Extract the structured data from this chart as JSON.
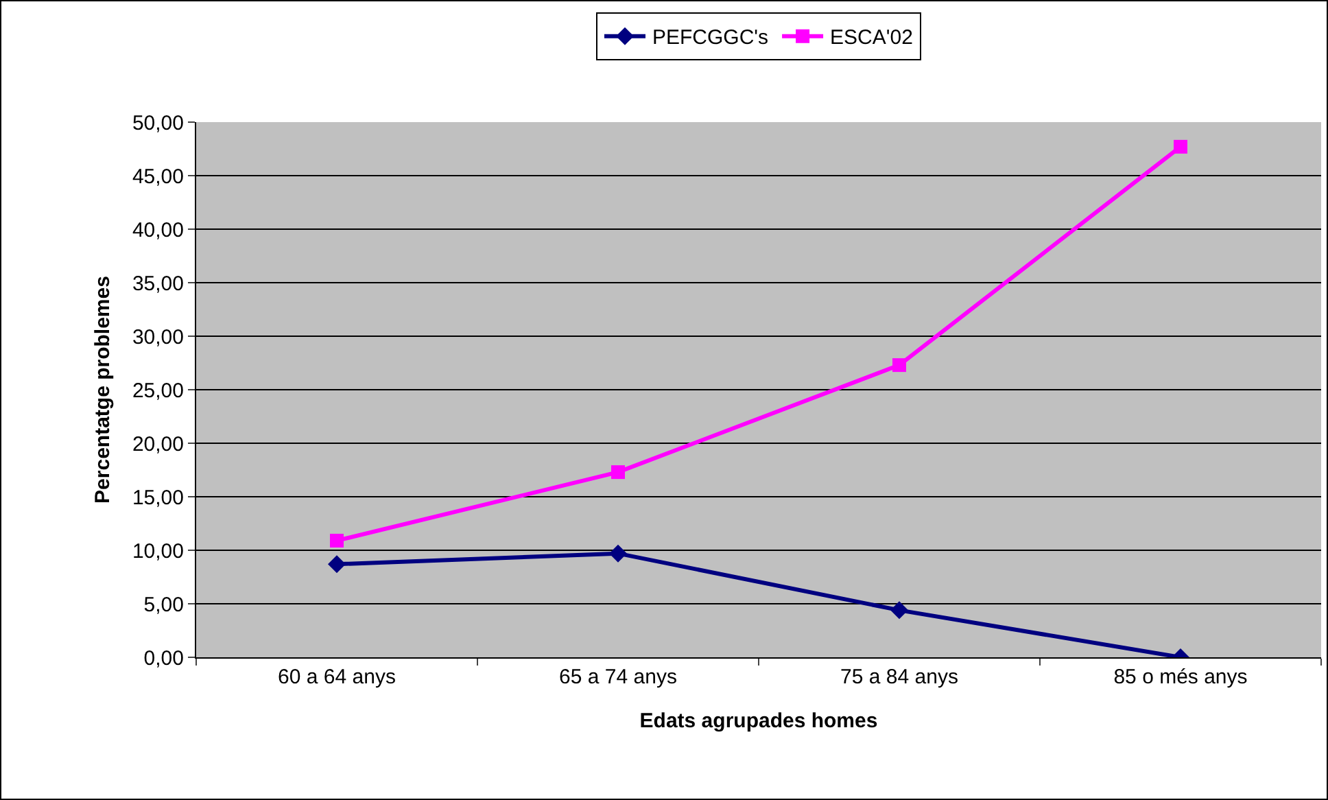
{
  "chart_data": {
    "type": "line",
    "xlabel": "Edats agrupades homes",
    "ylabel": "Percentatge problemes",
    "categories": [
      "60 a 64 anys",
      "65 a 74 anys",
      "75 a 84 anys",
      "85 o més anys"
    ],
    "series": [
      {
        "name": "PEFCGGC's",
        "color": "#000080",
        "marker": "diamond",
        "values": [
          8.7,
          9.7,
          4.4,
          0
        ]
      },
      {
        "name": "ESCA'02",
        "color": "#ff00ff",
        "marker": "square",
        "values": [
          10.9,
          17.3,
          27.3,
          47.7
        ]
      }
    ],
    "ylim": [
      0,
      50
    ],
    "yticks": [
      {
        "value": 0,
        "label": "0,00"
      },
      {
        "value": 5,
        "label": "5,00"
      },
      {
        "value": 10,
        "label": "10,00"
      },
      {
        "value": 15,
        "label": "15,00"
      },
      {
        "value": 20,
        "label": "20,00"
      },
      {
        "value": 25,
        "label": "25,00"
      },
      {
        "value": 30,
        "label": "30,00"
      },
      {
        "value": 35,
        "label": "35,00"
      },
      {
        "value": 40,
        "label": "40,00"
      },
      {
        "value": 45,
        "label": "45,00"
      },
      {
        "value": 50,
        "label": "50,00"
      }
    ],
    "grid": "y",
    "legend": "top",
    "line_style": "solid"
  }
}
